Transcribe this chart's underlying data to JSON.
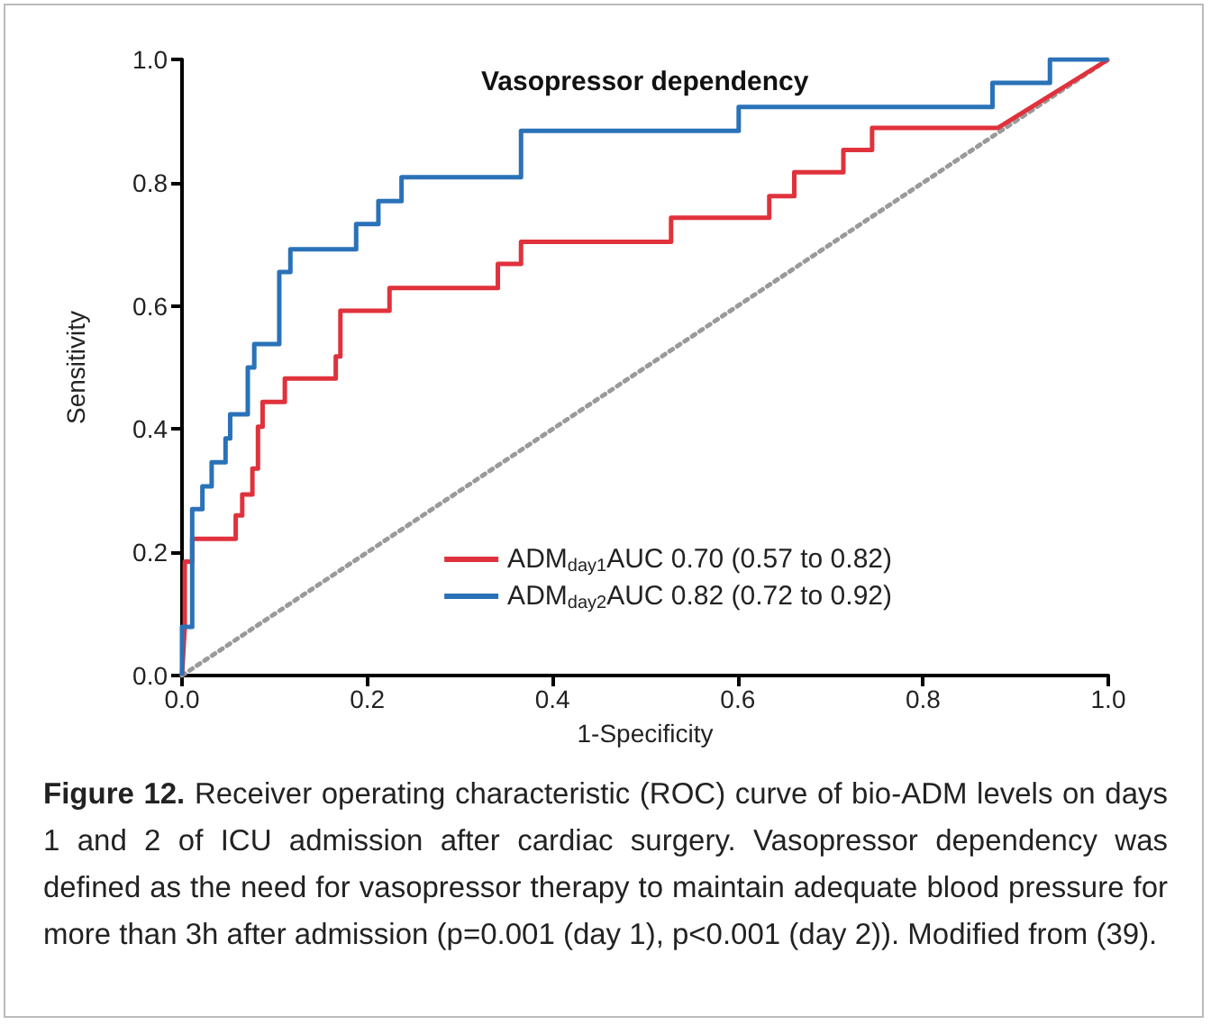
{
  "chart_data": {
    "type": "line",
    "title": "Vasopressor dependency",
    "xlabel": "1-Specificity",
    "ylabel": "Sensitivity",
    "xlim": [
      0,
      1
    ],
    "ylim": [
      0,
      1
    ],
    "xticks": [
      {
        "value": 0,
        "label": "0.0"
      },
      0.2,
      0.4,
      0.6,
      0.8,
      {
        "value": 1,
        "label": "1.0"
      }
    ],
    "yticks": [
      {
        "value": 0,
        "label": "0.0"
      },
      0.2,
      0.4,
      0.6,
      0.8,
      {
        "value": 1,
        "label": "1.0"
      }
    ],
    "grid": false,
    "legend": "bottom right",
    "marker": "none",
    "series": [
      {
        "name": "ADM$_{day1}$AUC 0.70 (0.57 to 0.82)",
        "color": "#e0323c",
        "line_style": "solid",
        "x": [
          0,
          0.003,
          0.003,
          0.011,
          0.011,
          0.058,
          0.058,
          0.065,
          0.065,
          0.076,
          0.076,
          0.082,
          0.082,
          0.087,
          0.087,
          0.111,
          0.111,
          0.166,
          0.166,
          0.171,
          0.171,
          0.224,
          0.224,
          0.341,
          0.341,
          0.366,
          0.366,
          0.528,
          0.528,
          0.634,
          0.634,
          0.661,
          0.661,
          0.714,
          0.714,
          0.745,
          0.745,
          0.881,
          1
        ],
        "values": [
          0,
          0.08,
          0.185,
          0.185,
          0.222,
          0.222,
          0.26,
          0.26,
          0.294,
          0.294,
          0.336,
          0.336,
          0.404,
          0.404,
          0.444,
          0.444,
          0.482,
          0.482,
          0.518,
          0.518,
          0.592,
          0.592,
          0.629,
          0.629,
          0.668,
          0.668,
          0.704,
          0.704,
          0.743,
          0.743,
          0.778,
          0.778,
          0.817,
          0.817,
          0.853,
          0.853,
          0.889,
          0.889,
          1
        ]
      },
      {
        "name": "ADM$_{day2}$AUC 0.82 (0.72 to 0.92)",
        "color": "#2a72b8",
        "line_style": "solid",
        "x": [
          0,
          0,
          0.011,
          0.011,
          0.022,
          0.022,
          0.032,
          0.032,
          0.047,
          0.047,
          0.052,
          0.052,
          0.071,
          0.071,
          0.078,
          0.078,
          0.105,
          0.105,
          0.117,
          0.117,
          0.188,
          0.188,
          0.212,
          0.212,
          0.237,
          0.237,
          0.366,
          0.366,
          0.601,
          0.601,
          0.875,
          0.875,
          0.937,
          0.937,
          1
        ],
        "values": [
          0,
          0.079,
          0.079,
          0.27,
          0.27,
          0.307,
          0.307,
          0.346,
          0.346,
          0.385,
          0.385,
          0.424,
          0.424,
          0.5,
          0.5,
          0.538,
          0.538,
          0.655,
          0.655,
          0.692,
          0.692,
          0.733,
          0.733,
          0.77,
          0.77,
          0.809,
          0.809,
          0.884,
          0.884,
          0.923,
          0.923,
          0.962,
          0.962,
          1,
          1
        ]
      },
      {
        "color": "#9a9a9a",
        "line_style": "dotted",
        "x": [
          0,
          1
        ],
        "values": [
          0,
          1
        ]
      }
    ],
    "annotations": [
      "Figure 12.",
      "Receiver operating characteristic (ROC) curve of bio-ADM levels on days 1 and 2 of ICU admission after cardiac surgery. Vasopressor dependency was defined as the need for vasopressor therapy to maintain adequate blood pressure for more than 3h after admission (p=0.001 (day 1), p<0.001 (day 2)). Modified from (39)."
    ]
  }
}
